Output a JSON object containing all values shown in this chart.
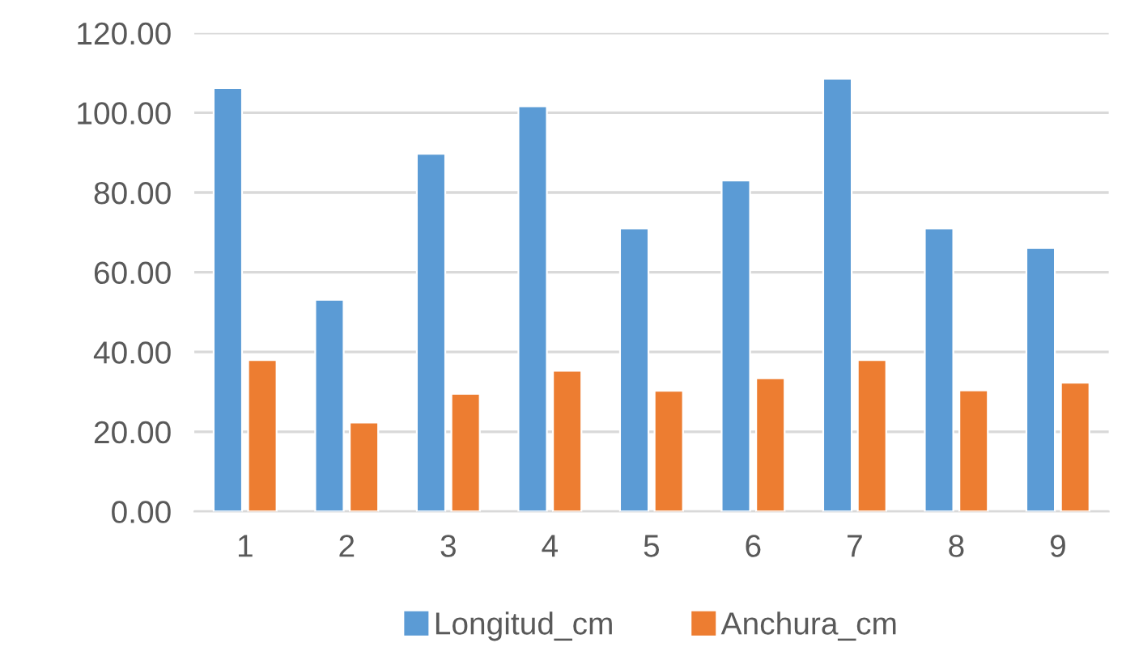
{
  "chart_data": {
    "type": "bar",
    "categories": [
      "1",
      "2",
      "3",
      "4",
      "5",
      "6",
      "7",
      "8",
      "9"
    ],
    "series": [
      {
        "name": "Longitud_cm",
        "color": "#5b9bd5",
        "values": [
          106.2,
          53.1,
          89.7,
          101.6,
          71.0,
          83.0,
          108.5,
          71.0,
          66.1
        ]
      },
      {
        "name": "Anchura_cm",
        "color": "#ed7d31",
        "values": [
          38.0,
          22.3,
          29.5,
          35.3,
          30.3,
          33.4,
          38.0,
          30.4,
          32.3
        ]
      }
    ],
    "ylim": [
      0,
      120
    ],
    "yticks": [
      {
        "value": 0,
        "label": "0.00"
      },
      {
        "value": 20,
        "label": "20.00"
      },
      {
        "value": 40,
        "label": "40.00"
      },
      {
        "value": 60,
        "label": "60.00"
      },
      {
        "value": 80,
        "label": "80.00"
      },
      {
        "value": 100,
        "label": "100.00"
      },
      {
        "value": 120,
        "label": "120.00"
      }
    ],
    "grid": "y",
    "legend": "bottom"
  }
}
